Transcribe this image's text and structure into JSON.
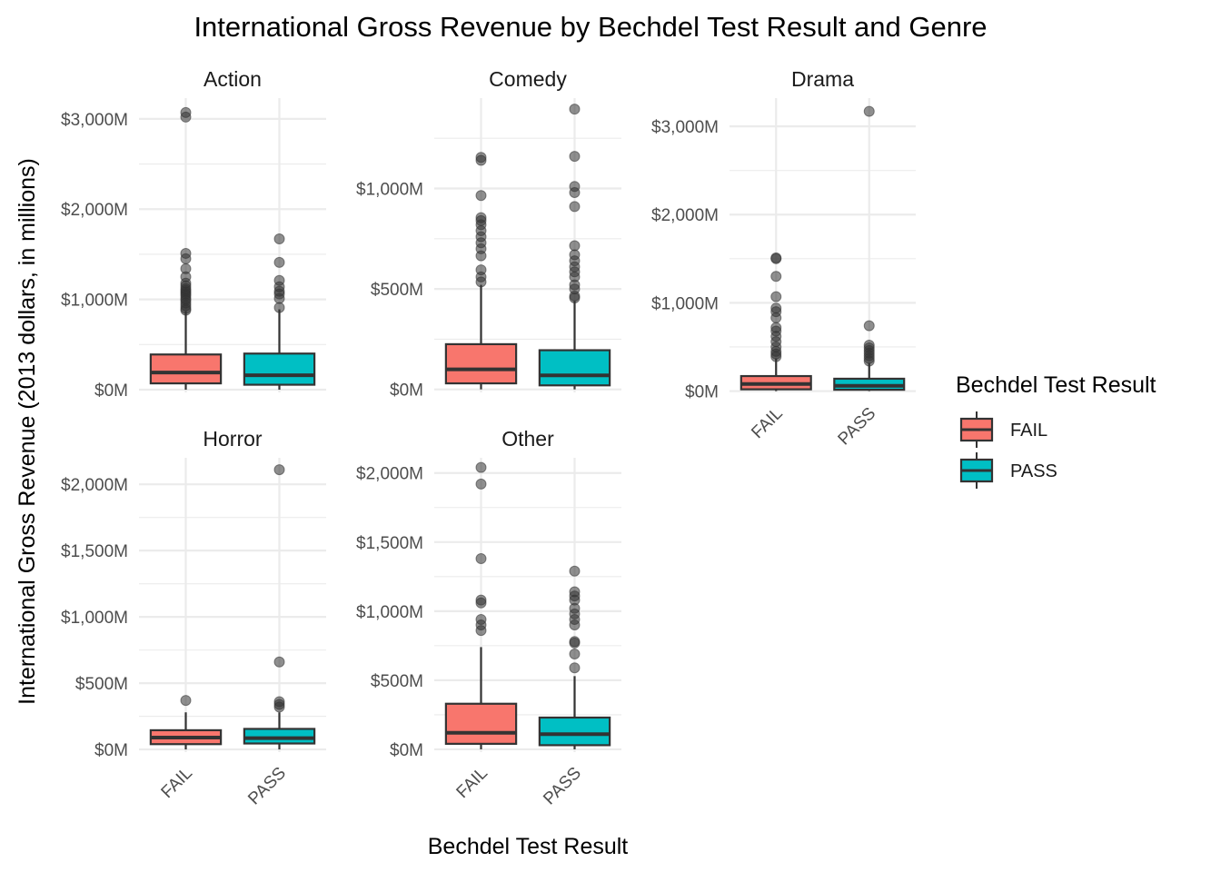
{
  "chart_data": {
    "type": "box",
    "title": "International Gross Revenue by Bechdel Test Result and Genre",
    "xlabel": "Bechdel Test Result",
    "ylabel": "International Gross Revenue (2013 dollars, in millions)",
    "categories": [
      "FAIL",
      "PASS"
    ],
    "legend": {
      "title": "Bechdel Test Result",
      "placement": "right",
      "entries": [
        {
          "label": "FAIL",
          "color": "#F8766D"
        },
        {
          "label": "PASS",
          "color": "#00BFC4"
        }
      ]
    },
    "grid": true,
    "y_scale": "free",
    "panels": [
      {
        "genre": "Action",
        "ylim": [
          -30,
          3230
        ],
        "y_ticks": [
          0,
          1000,
          2000,
          3000
        ],
        "y_tick_labels": [
          "$0M",
          "$1,000M",
          "$2,000M",
          "$3,000M"
        ],
        "boxes": [
          {
            "group": "FAIL",
            "q1": 70,
            "median": 190,
            "q3": 390,
            "whisker_low": 0,
            "whisker_high": 870,
            "outliers": [
              880,
              900,
              930,
              960,
              990,
              1010,
              1040,
              1060,
              1080,
              1100,
              1120,
              1150,
              1180,
              1250,
              1340,
              1450,
              1510,
              3020,
              3070
            ]
          },
          {
            "group": "PASS",
            "q1": 55,
            "median": 160,
            "q3": 400,
            "whisker_low": 0,
            "whisker_high": 890,
            "outliers": [
              910,
              1010,
              1060,
              1090,
              1140,
              1210,
              1410,
              1670
            ]
          }
        ]
      },
      {
        "genre": "Comedy",
        "ylim": [
          -15,
          1450
        ],
        "y_ticks": [
          0,
          500,
          1000
        ],
        "y_tick_labels": [
          "$0M",
          "$500M",
          "$1,000M"
        ],
        "boxes": [
          {
            "group": "FAIL",
            "q1": 30,
            "median": 100,
            "q3": 225,
            "whisker_low": 0,
            "whisker_high": 520,
            "outliers": [
              535,
              560,
              595,
              665,
              700,
              730,
              760,
              790,
              820,
              840,
              855,
              965,
              1140,
              1155
            ]
          },
          {
            "group": "PASS",
            "q1": 20,
            "median": 70,
            "q3": 195,
            "whisker_low": 0,
            "whisker_high": 440,
            "outliers": [
              455,
              465,
              500,
              520,
              560,
              585,
              610,
              640,
              670,
              715,
              910,
              980,
              1010,
              1160,
              1395
            ]
          }
        ]
      },
      {
        "genre": "Drama",
        "ylim": [
          -15,
          3320
        ],
        "y_ticks": [
          0,
          1000,
          2000,
          3000
        ],
        "y_tick_labels": [
          "$0M",
          "$1,000M",
          "$2,000M",
          "$3,000M"
        ],
        "boxes": [
          {
            "group": "FAIL",
            "q1": 20,
            "median": 80,
            "q3": 170,
            "whisker_low": 0,
            "whisker_high": 370,
            "outliers": [
              390,
              420,
              450,
              500,
              560,
              620,
              680,
              720,
              830,
              900,
              940,
              1070,
              1300,
              1500,
              1510
            ]
          },
          {
            "group": "PASS",
            "q1": 15,
            "median": 60,
            "q3": 140,
            "whisker_low": 0,
            "whisker_high": 320,
            "outliers": [
              340,
              370,
              400,
              430,
              460,
              490,
              520,
              740,
              3170
            ]
          }
        ]
      },
      {
        "genre": "Horror",
        "ylim": [
          -20,
          2200
        ],
        "y_ticks": [
          0,
          500,
          1000,
          1500,
          2000
        ],
        "y_tick_labels": [
          "$0M",
          "$500M",
          "$1,000M",
          "$1,500M",
          "$2,000M"
        ],
        "boxes": [
          {
            "group": "FAIL",
            "q1": 40,
            "median": 90,
            "q3": 145,
            "whisker_low": 0,
            "whisker_high": 280,
            "outliers": [
              370
            ]
          },
          {
            "group": "PASS",
            "q1": 45,
            "median": 85,
            "q3": 155,
            "whisker_low": 0,
            "whisker_high": 280,
            "outliers": [
              320,
              340,
              360,
              660,
              2110
            ]
          }
        ]
      },
      {
        "genre": "Other",
        "ylim": [
          -20,
          2110
        ],
        "y_ticks": [
          0,
          500,
          1000,
          1500,
          2000
        ],
        "y_tick_labels": [
          "$0M",
          "$500M",
          "$1,000M",
          "$1,500M",
          "$2,000M"
        ],
        "boxes": [
          {
            "group": "FAIL",
            "q1": 40,
            "median": 120,
            "q3": 330,
            "whisker_low": 0,
            "whisker_high": 740,
            "outliers": [
              860,
              900,
              940,
              1060,
              1080,
              1380,
              1920,
              2040
            ]
          },
          {
            "group": "PASS",
            "q1": 30,
            "median": 110,
            "q3": 230,
            "whisker_low": 0,
            "whisker_high": 530,
            "outliers": [
              590,
              690,
              770,
              780,
              900,
              940,
              980,
              1020,
              1080,
              1110,
              1140,
              1290
            ]
          }
        ]
      }
    ]
  }
}
